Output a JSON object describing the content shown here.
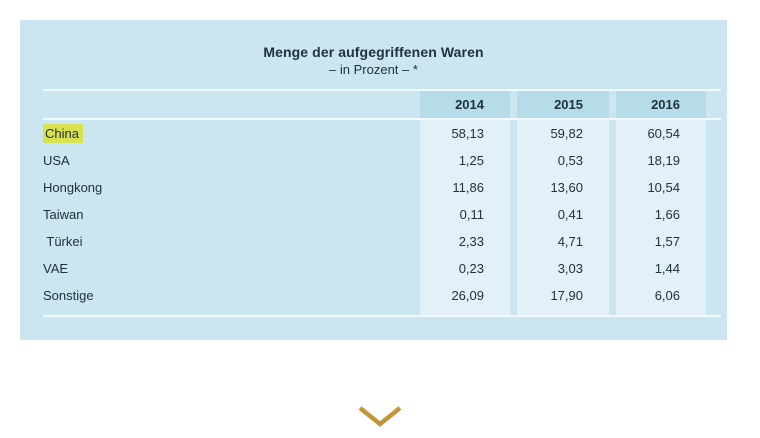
{
  "table": {
    "title": "Menge der aufgegriffenen Waren",
    "subtitle": "– in Prozent – *",
    "columns": [
      "2014",
      "2015",
      "2016"
    ],
    "rows": [
      {
        "label": "China",
        "highlighted": true,
        "values": [
          "58,13",
          "59,82",
          "60,54"
        ]
      },
      {
        "label": "USA",
        "highlighted": false,
        "values": [
          "1,25",
          "0,53",
          "18,19"
        ]
      },
      {
        "label": "Hongkong",
        "highlighted": false,
        "values": [
          "11,86",
          "13,60",
          "10,54"
        ]
      },
      {
        "label": "Taiwan",
        "highlighted": false,
        "values": [
          "0,11",
          "0,41",
          "1,66"
        ]
      },
      {
        "label": " Türkei",
        "highlighted": false,
        "values": [
          "2,33",
          "4,71",
          "1,57"
        ]
      },
      {
        "label": "VAE",
        "highlighted": false,
        "values": [
          "0,23",
          "3,03",
          "1,44"
        ]
      },
      {
        "label": "Sonstige",
        "highlighted": false,
        "values": [
          "26,09",
          "17,90",
          "6,06"
        ]
      }
    ]
  },
  "chart_data": {
    "type": "table",
    "title": "Menge der aufgegriffenen Waren",
    "subtitle": "– in Prozent – *",
    "categories": [
      "2014",
      "2015",
      "2016"
    ],
    "series": [
      {
        "name": "China",
        "values": [
          58.13,
          59.82,
          60.54
        ]
      },
      {
        "name": "USA",
        "values": [
          1.25,
          0.53,
          18.19
        ]
      },
      {
        "name": "Hongkong",
        "values": [
          11.86,
          13.6,
          10.54
        ]
      },
      {
        "name": "Taiwan",
        "values": [
          0.11,
          0.41,
          1.66
        ]
      },
      {
        "name": "Türkei",
        "values": [
          2.33,
          4.71,
          1.57
        ]
      },
      {
        "name": "VAE",
        "values": [
          0.23,
          3.03,
          1.44
        ]
      },
      {
        "name": "Sonstige",
        "values": [
          26.09,
          17.9,
          6.06
        ]
      }
    ],
    "highlighted_row": "China",
    "legend_position": "none",
    "grid": false
  },
  "colors": {
    "panel": "#cbe6f1",
    "header_cell": "#b6dcea",
    "value_cell": "#e2f0f7",
    "highlight": "#d7e24d",
    "chevron": "#c49439",
    "text": "#21323c"
  },
  "expander": {
    "icon": "chevron-down"
  }
}
